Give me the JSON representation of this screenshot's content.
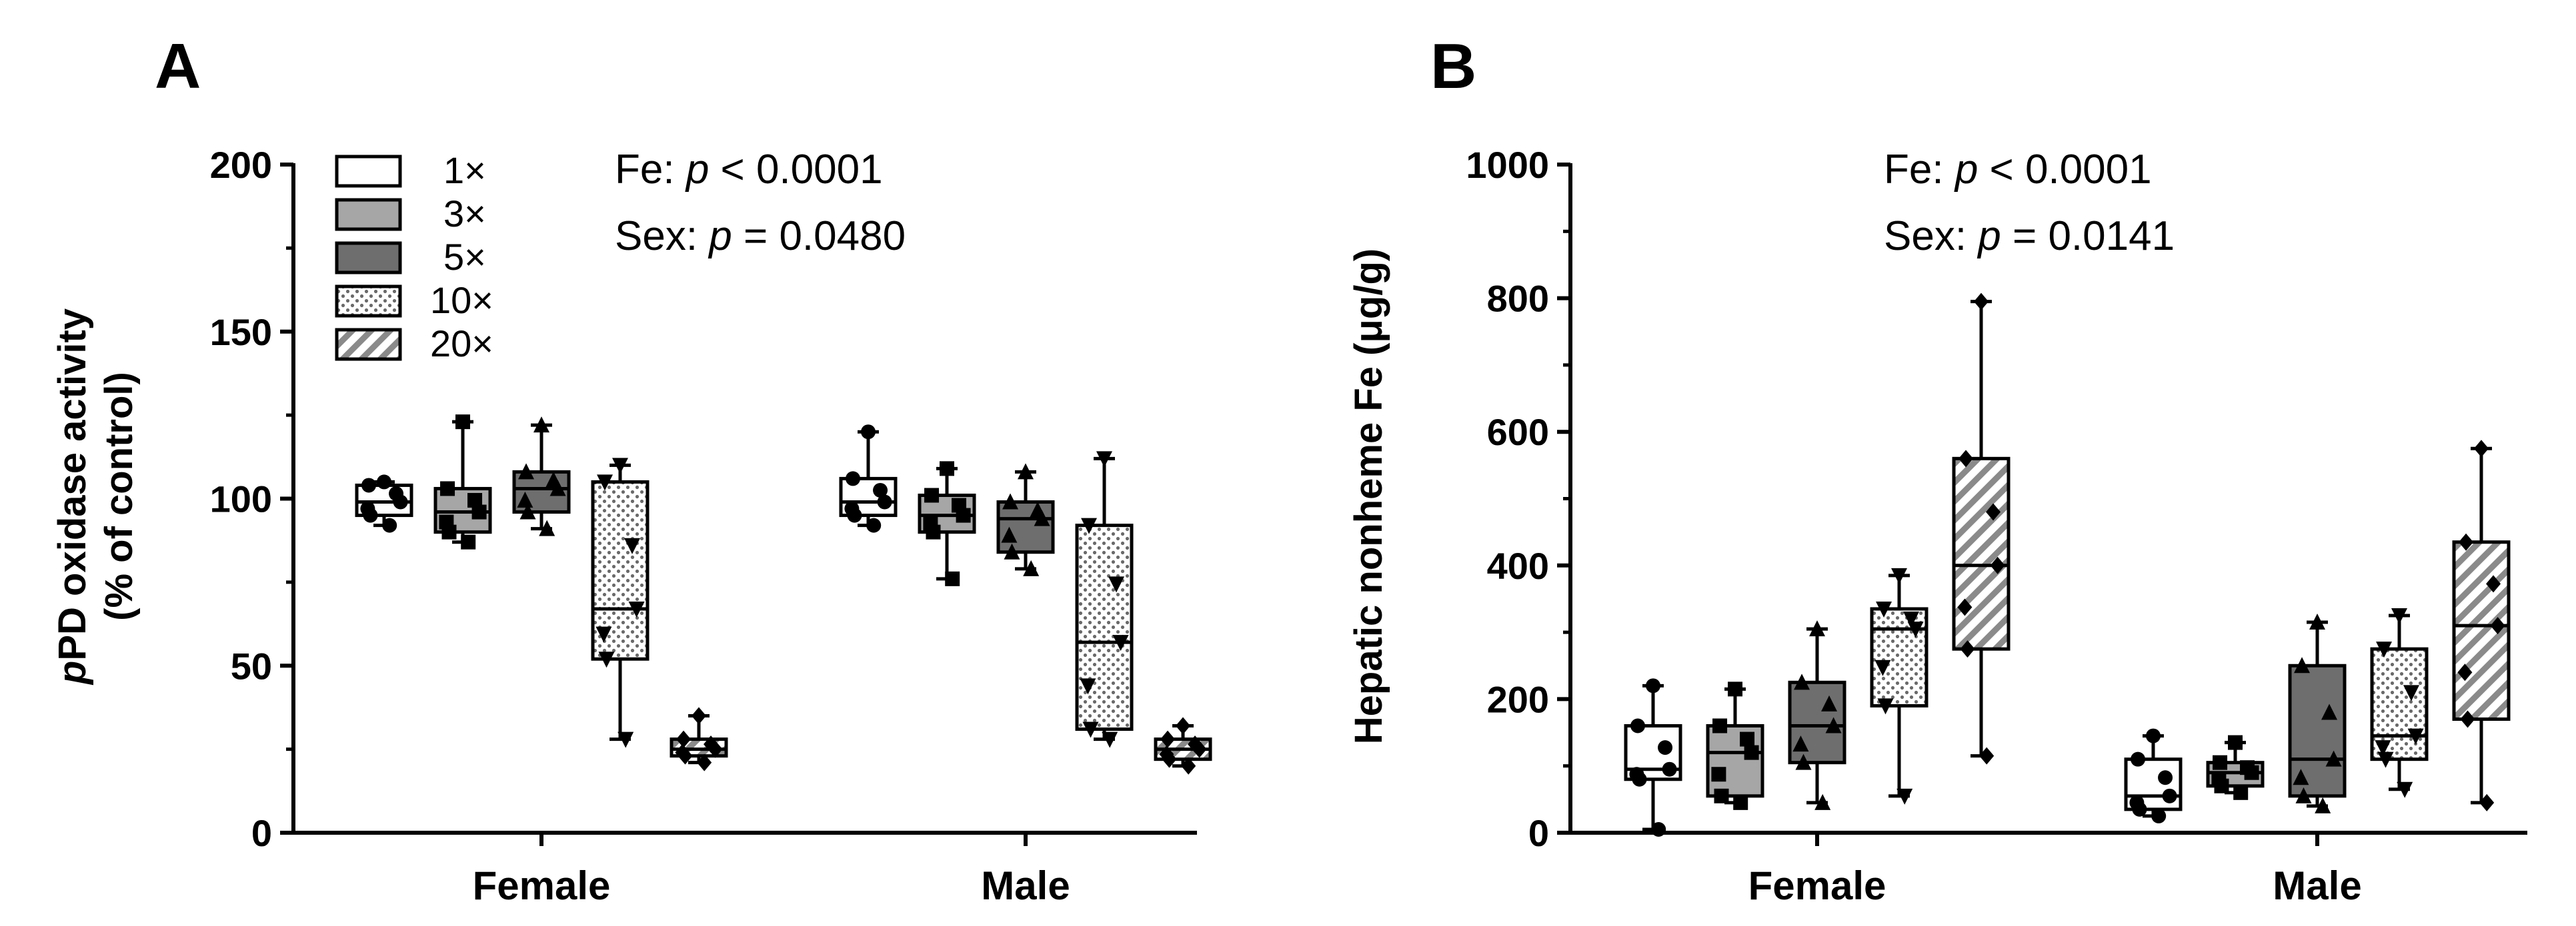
{
  "chart_data": [
    {
      "type": "box",
      "panel_label": "A",
      "ylabel_italic": "p",
      "ylabel_rest": "PD oxidase activity",
      "ylabel_line2": "(% of control)",
      "ylim": [
        0,
        200
      ],
      "yticks": [
        0,
        50,
        100,
        150,
        200
      ],
      "categories": [
        "Female",
        "Male"
      ],
      "legend": [
        {
          "label": "1×",
          "pattern": "white"
        },
        {
          "label": "3×",
          "pattern": "lightgray"
        },
        {
          "label": "5×",
          "pattern": "darkgray"
        },
        {
          "label": "10×",
          "pattern": "dots"
        },
        {
          "label": "20×",
          "pattern": "hatch"
        }
      ],
      "stats": [
        {
          "prefix": "Fe: ",
          "p": "p",
          "suffix": " < 0.0001"
        },
        {
          "prefix": "Sex: ",
          "p": "p",
          "suffix": " = 0.0480"
        }
      ],
      "groups": [
        {
          "name": "Female",
          "boxes": [
            {
              "dose": "1×",
              "min": 92,
              "q1": 95,
              "median": 99,
              "q3": 104,
              "max": 105
            },
            {
              "dose": "3×",
              "min": 87,
              "q1": 90,
              "median": 96,
              "q3": 103,
              "max": 123
            },
            {
              "dose": "5×",
              "min": 91,
              "q1": 96,
              "median": 103,
              "q3": 108,
              "max": 122
            },
            {
              "dose": "10×",
              "min": 28,
              "q1": 52,
              "median": 67,
              "q3": 105,
              "max": 110
            },
            {
              "dose": "20×",
              "min": 21,
              "q1": 23,
              "median": 25,
              "q3": 28,
              "max": 35
            }
          ]
        },
        {
          "name": "Male",
          "boxes": [
            {
              "dose": "1×",
              "min": 92,
              "q1": 95,
              "median": 99,
              "q3": 106,
              "max": 120
            },
            {
              "dose": "3×",
              "min": 76,
              "q1": 90,
              "median": 95,
              "q3": 101,
              "max": 109
            },
            {
              "dose": "5×",
              "min": 79,
              "q1": 84,
              "median": 94,
              "q3": 99,
              "max": 108
            },
            {
              "dose": "10×",
              "min": 28,
              "q1": 31,
              "median": 57,
              "q3": 92,
              "max": 112
            },
            {
              "dose": "20×",
              "min": 20,
              "q1": 22,
              "median": 25,
              "q3": 28,
              "max": 32
            }
          ]
        }
      ]
    },
    {
      "type": "box",
      "panel_label": "B",
      "ylabel": "Hepatic nonheme Fe (μg/g)",
      "ylim": [
        0,
        1000
      ],
      "yticks": [
        0,
        200,
        400,
        600,
        800,
        1000
      ],
      "categories": [
        "Female",
        "Male"
      ],
      "stats": [
        {
          "prefix": "Fe: ",
          "p": "p",
          "suffix": " < 0.0001"
        },
        {
          "prefix": "Sex: ",
          "p": "p",
          "suffix": " = 0.0141"
        }
      ],
      "groups": [
        {
          "name": "Female",
          "boxes": [
            {
              "dose": "1×",
              "min": 5,
              "q1": 80,
              "median": 95,
              "q3": 160,
              "max": 220
            },
            {
              "dose": "3×",
              "min": 45,
              "q1": 55,
              "median": 120,
              "q3": 160,
              "max": 215
            },
            {
              "dose": "5×",
              "min": 45,
              "q1": 105,
              "median": 160,
              "q3": 225,
              "max": 305
            },
            {
              "dose": "10×",
              "min": 55,
              "q1": 190,
              "median": 305,
              "q3": 335,
              "max": 385
            },
            {
              "dose": "20×",
              "min": 115,
              "q1": 275,
              "median": 400,
              "q3": 560,
              "max": 795
            }
          ]
        },
        {
          "name": "Male",
          "boxes": [
            {
              "dose": "1×",
              "min": 25,
              "q1": 35,
              "median": 55,
              "q3": 110,
              "max": 145
            },
            {
              "dose": "3×",
              "min": 60,
              "q1": 70,
              "median": 90,
              "q3": 105,
              "max": 135
            },
            {
              "dose": "5×",
              "min": 40,
              "q1": 55,
              "median": 110,
              "q3": 250,
              "max": 315
            },
            {
              "dose": "10×",
              "min": 65,
              "q1": 110,
              "median": 145,
              "q3": 275,
              "max": 325
            },
            {
              "dose": "20×",
              "min": 45,
              "q1": 170,
              "median": 310,
              "q3": 435,
              "max": 575
            }
          ]
        }
      ]
    }
  ]
}
